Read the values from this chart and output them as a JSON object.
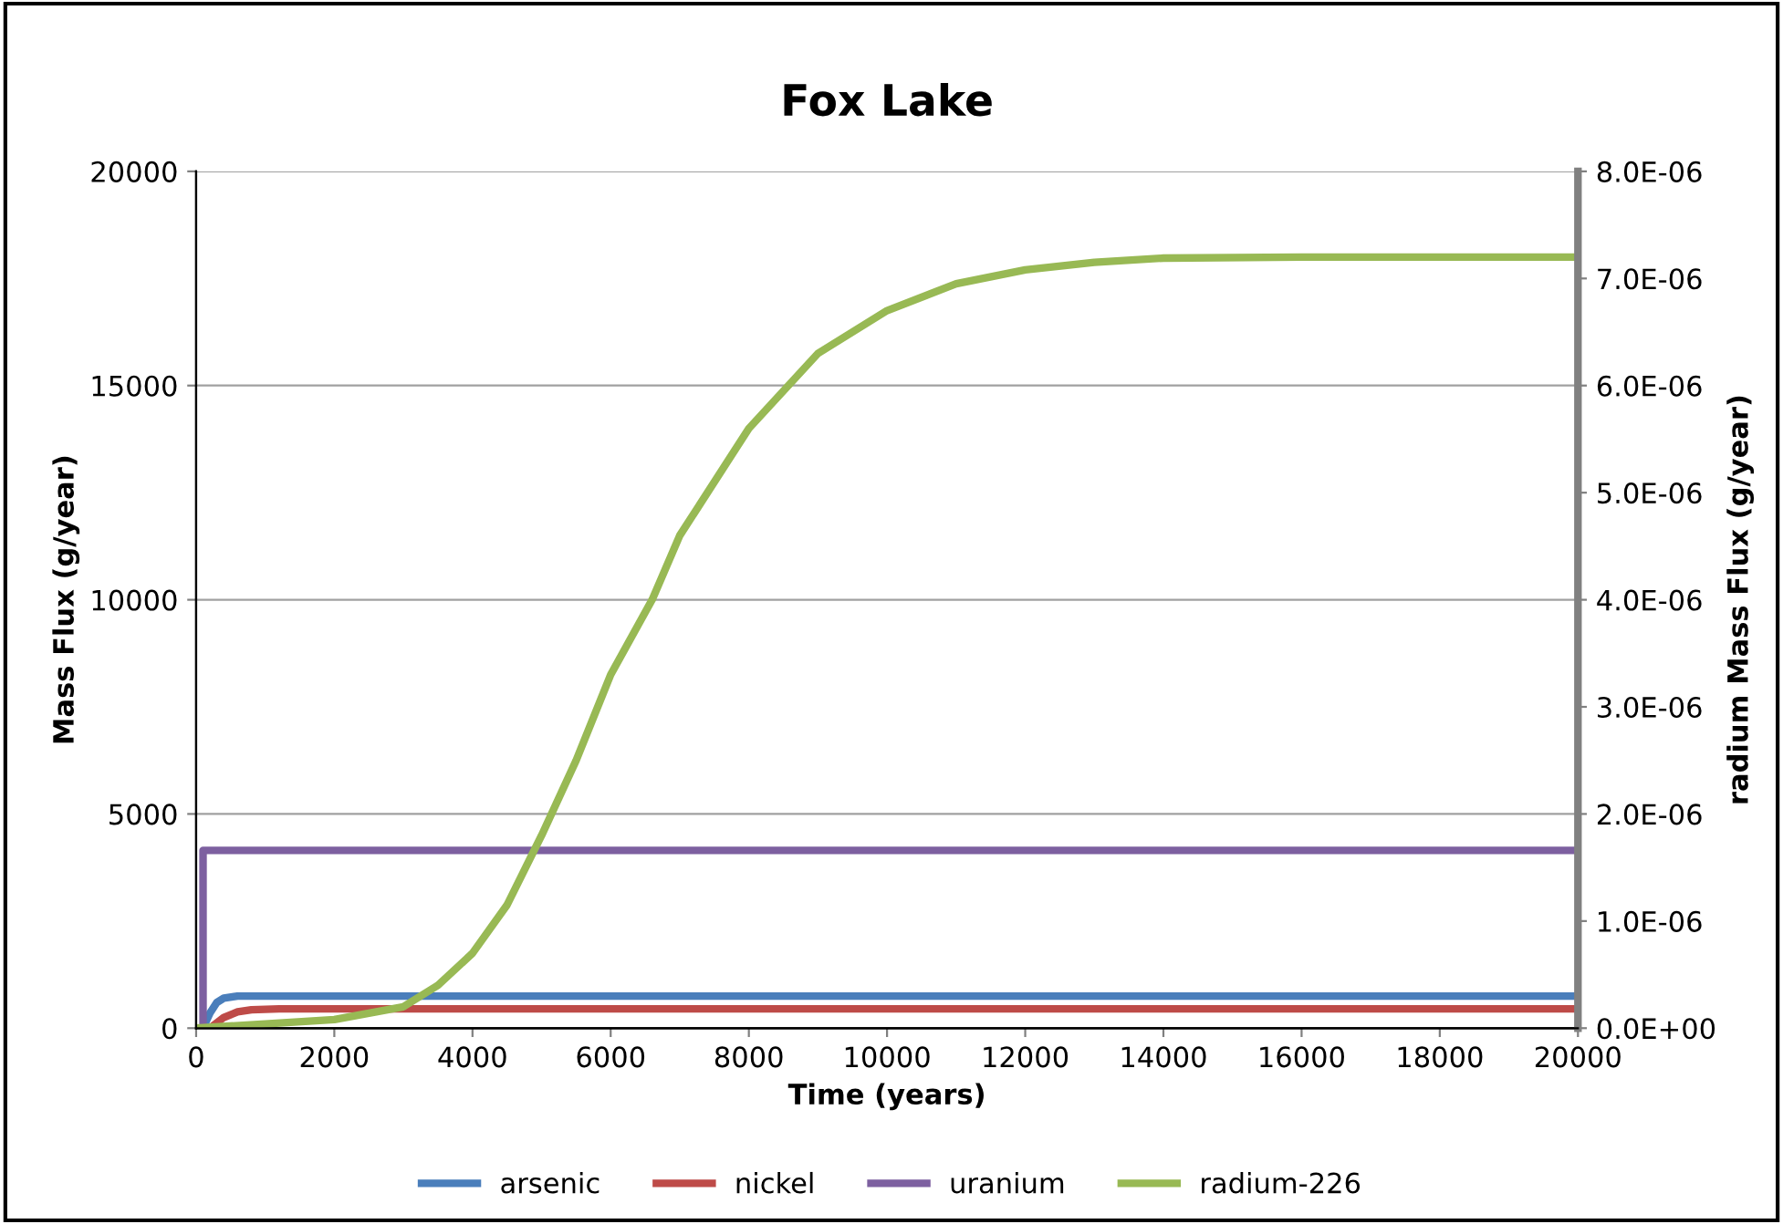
{
  "chart_data": {
    "type": "line",
    "title": "Fox Lake",
    "xlabel": "Time (years)",
    "ylabel": "Mass Flux (g/year)",
    "y2label": "radium Mass Flux (g/year)",
    "xlim": [
      0,
      20000
    ],
    "xticks": [
      0,
      2000,
      4000,
      6000,
      8000,
      10000,
      12000,
      14000,
      16000,
      18000,
      20000
    ],
    "ylim": [
      0,
      20000
    ],
    "yticks": [
      0,
      5000,
      10000,
      15000,
      20000
    ],
    "y2lim": [
      0,
      8e-06
    ],
    "y2ticks": [
      {
        "value": 0,
        "label": "0.0E+00"
      },
      {
        "value": 1e-06,
        "label": "1.0E-06"
      },
      {
        "value": 2e-06,
        "label": "2.0E-06"
      },
      {
        "value": 3e-06,
        "label": "3.0E-06"
      },
      {
        "value": 4e-06,
        "label": "4.0E-06"
      },
      {
        "value": 5e-06,
        "label": "5.0E-06"
      },
      {
        "value": 6e-06,
        "label": "6.0E-06"
      },
      {
        "value": 7e-06,
        "label": "7.0E-06"
      },
      {
        "value": 8e-06,
        "label": "8.0E-06"
      }
    ],
    "grid": "y",
    "legend": "bottom",
    "marker": "none",
    "line_style": "solid",
    "series": [
      {
        "name": "arsenic",
        "color": "#4a7ebb",
        "x": [
          100,
          200,
          300,
          400,
          600,
          1000,
          20000
        ],
        "values": [
          0,
          350,
          600,
          700,
          750,
          750,
          750
        ]
      },
      {
        "name": "nickel",
        "color": "#be4b48",
        "x": [
          200,
          400,
          600,
          800,
          1200,
          2000,
          20000
        ],
        "values": [
          0,
          250,
          380,
          430,
          450,
          450,
          450
        ]
      },
      {
        "name": "uranium",
        "color": "#7d60a0",
        "x": [
          100,
          100,
          20000
        ],
        "values": [
          0,
          4150,
          4150
        ]
      },
      {
        "name": "radium-226",
        "color": "#98b954",
        "axis": "y2",
        "x": [
          0,
          1000,
          2000,
          3000,
          3500,
          4000,
          4500,
          5000,
          5500,
          6000,
          6600,
          7000,
          8000,
          9000,
          10000,
          11000,
          12000,
          13000,
          14000,
          16000,
          20000
        ],
        "values": [
          0,
          4e-08,
          8e-08,
          2e-07,
          4e-07,
          7e-07,
          1.15e-06,
          1.8e-06,
          2.5e-06,
          3.3e-06,
          4e-06,
          4.6e-06,
          5.6e-06,
          6.3e-06,
          6.7e-06,
          6.95e-06,
          7.08e-06,
          7.15e-06,
          7.19e-06,
          7.2e-06,
          7.2e-06
        ]
      }
    ]
  }
}
